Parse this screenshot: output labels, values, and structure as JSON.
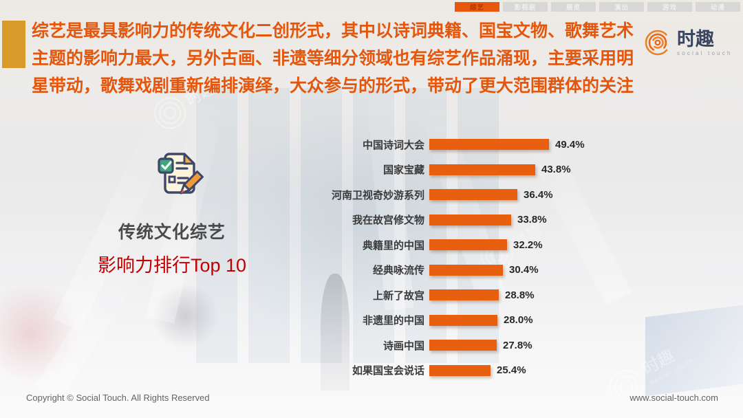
{
  "tabs": [
    {
      "label": "综艺",
      "active": true
    },
    {
      "label": "影视剧",
      "active": false
    },
    {
      "label": "展览",
      "active": false
    },
    {
      "label": "演出",
      "active": false
    },
    {
      "label": "游戏",
      "active": false
    },
    {
      "label": "动漫",
      "active": false
    }
  ],
  "header": {
    "paragraph": "综艺是最具影响力的传统文化二创形式，其中以诗词典籍、国宝文物、歌舞艺术主题的影响力最大，另外古画、非遗等细分领域也有综艺作品涌现，主要采用明星带动，歌舞戏剧重新编排演绎，大众参与的形式，带动了更大范围群体的关注",
    "accent_color": "#d89b2b",
    "text_color": "#e4560c"
  },
  "logo": {
    "name": "时趣",
    "subtitle": "social touch",
    "icon": "spiral-circles-icon"
  },
  "left_panel": {
    "icon": "checklist-pencil-icon",
    "title": "传统文化综艺",
    "subtitle": "影响力排行Top 10",
    "subtitle_color": "#c00000"
  },
  "chart_data": {
    "type": "bar",
    "orientation": "horizontal",
    "title": "传统文化综艺影响力排行Top 10",
    "categories": [
      "中国诗词大会",
      "国家宝藏",
      "河南卫视奇妙游系列",
      "我在故宫修文物",
      "典籍里的中国",
      "经典咏流传",
      "上新了故宫",
      "非遗里的中国",
      "诗画中国",
      "如果国宝会说话"
    ],
    "values": [
      49.4,
      43.8,
      36.4,
      33.8,
      32.2,
      30.4,
      28.8,
      28.0,
      27.8,
      25.4
    ],
    "value_labels": [
      "49.4%",
      "43.8%",
      "36.4%",
      "33.8%",
      "32.2%",
      "30.4%",
      "28.8%",
      "28.0%",
      "27.8%",
      "25.4%"
    ],
    "unit": "%",
    "xlim": [
      0,
      55
    ],
    "bar_color": "#e8600f",
    "grid": false,
    "legend": false
  },
  "watermark": {
    "text": "时趣",
    "subtext": "social touch"
  },
  "footer": {
    "copyright": "Copyright © Social Touch. All Rights Reserved",
    "website": "www.social-touch.com"
  }
}
